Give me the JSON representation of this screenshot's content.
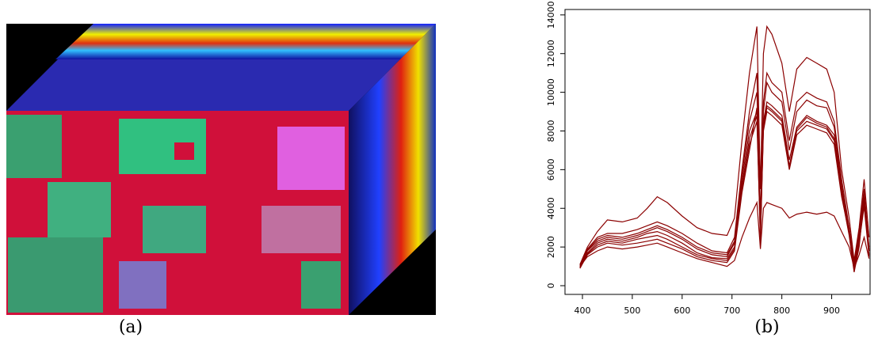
{
  "chart_data": {
    "type": "line",
    "x": [
      395,
      410,
      430,
      450,
      480,
      510,
      530,
      550,
      570,
      600,
      630,
      660,
      690,
      705,
      720,
      735,
      750,
      757,
      763,
      770,
      780,
      800,
      815,
      830,
      850,
      870,
      890,
      905,
      920,
      935,
      945,
      955,
      965,
      975
    ],
    "series": [
      {
        "values": [
          1100,
          2000,
          2800,
          3400,
          3300,
          3500,
          4000,
          4600,
          4300,
          3600,
          3000,
          2700,
          2600,
          3500,
          7500,
          11000,
          13400,
          5000,
          12000,
          13400,
          13000,
          11500,
          9000,
          11200,
          11800,
          11500,
          11200,
          10000,
          6000,
          3500,
          1300,
          3000,
          5500,
          2500
        ]
      },
      {
        "values": [
          1000,
          1900,
          2500,
          2700,
          2700,
          2900,
          3100,
          3300,
          3100,
          2700,
          2200,
          1800,
          1700,
          2500,
          6000,
          9000,
          11000,
          3500,
          9500,
          11000,
          10500,
          10000,
          7500,
          9500,
          10000,
          9700,
          9500,
          8500,
          5500,
          3000,
          1000,
          2800,
          5000,
          1800
        ]
      },
      {
        "values": [
          1050,
          1850,
          2400,
          2600,
          2500,
          2700,
          2900,
          3100,
          2900,
          2500,
          2000,
          1700,
          1600,
          2300,
          5800,
          8500,
          10000,
          3200,
          9000,
          10500,
          10000,
          9500,
          7000,
          9000,
          9600,
          9300,
          9200,
          8200,
          5200,
          2800,
          900,
          2600,
          4800,
          1900
        ]
      },
      {
        "values": [
          1000,
          1800,
          2300,
          2500,
          2400,
          2600,
          2800,
          3000,
          2800,
          2400,
          1900,
          1600,
          1500,
          2200,
          5500,
          8000,
          9000,
          3000,
          8500,
          9500,
          9300,
          8800,
          6500,
          8200,
          8800,
          8500,
          8300,
          7800,
          5000,
          3000,
          1200,
          2500,
          4500,
          2000
        ]
      },
      {
        "values": [
          950,
          1700,
          2200,
          2400,
          2300,
          2500,
          2700,
          2800,
          2600,
          2200,
          1700,
          1450,
          1400,
          2000,
          5200,
          7600,
          8800,
          2800,
          8200,
          9200,
          9000,
          8500,
          6200,
          8000,
          8500,
          8300,
          8100,
          7500,
          4800,
          2900,
          1100,
          2400,
          4300,
          1800
        ]
      },
      {
        "values": [
          900,
          1650,
          2100,
          2300,
          2200,
          2400,
          2500,
          2600,
          2400,
          2000,
          1600,
          1400,
          1300,
          1900,
          5000,
          7300,
          8500,
          2500,
          8000,
          9000,
          8800,
          8300,
          6000,
          7800,
          8300,
          8100,
          7900,
          7300,
          4600,
          2700,
          800,
          2200,
          4100,
          1500
        ]
      },
      {
        "values": [
          900,
          1600,
          2000,
          2200,
          2100,
          2200,
          2300,
          2400,
          2200,
          1900,
          1500,
          1300,
          1200,
          1800,
          4800,
          7000,
          9200,
          2200,
          8300,
          9300,
          9100,
          8600,
          6100,
          8100,
          8700,
          8400,
          8200,
          7600,
          4700,
          2600,
          700,
          2000,
          4600,
          1600
        ]
      },
      {
        "values": [
          1000,
          1500,
          1800,
          2000,
          1900,
          2000,
          2100,
          2200,
          2000,
          1700,
          1400,
          1200,
          1000,
          1300,
          2500,
          3500,
          4300,
          1900,
          4000,
          4300,
          4200,
          4000,
          3500,
          3700,
          3800,
          3700,
          3800,
          3600,
          2800,
          2000,
          900,
          1600,
          2500,
          1400
        ]
      }
    ],
    "color": "#8b0000",
    "xlim": [
      365,
      977
    ],
    "xticks": [
      400,
      500,
      600,
      700,
      800,
      900
    ],
    "ylim": [
      -450,
      14280
    ],
    "yticks": [
      0,
      2000,
      4000,
      6000,
      8000,
      10000,
      12000,
      14000
    ]
  },
  "captions": {
    "a": "(a)",
    "b": "(b)"
  }
}
